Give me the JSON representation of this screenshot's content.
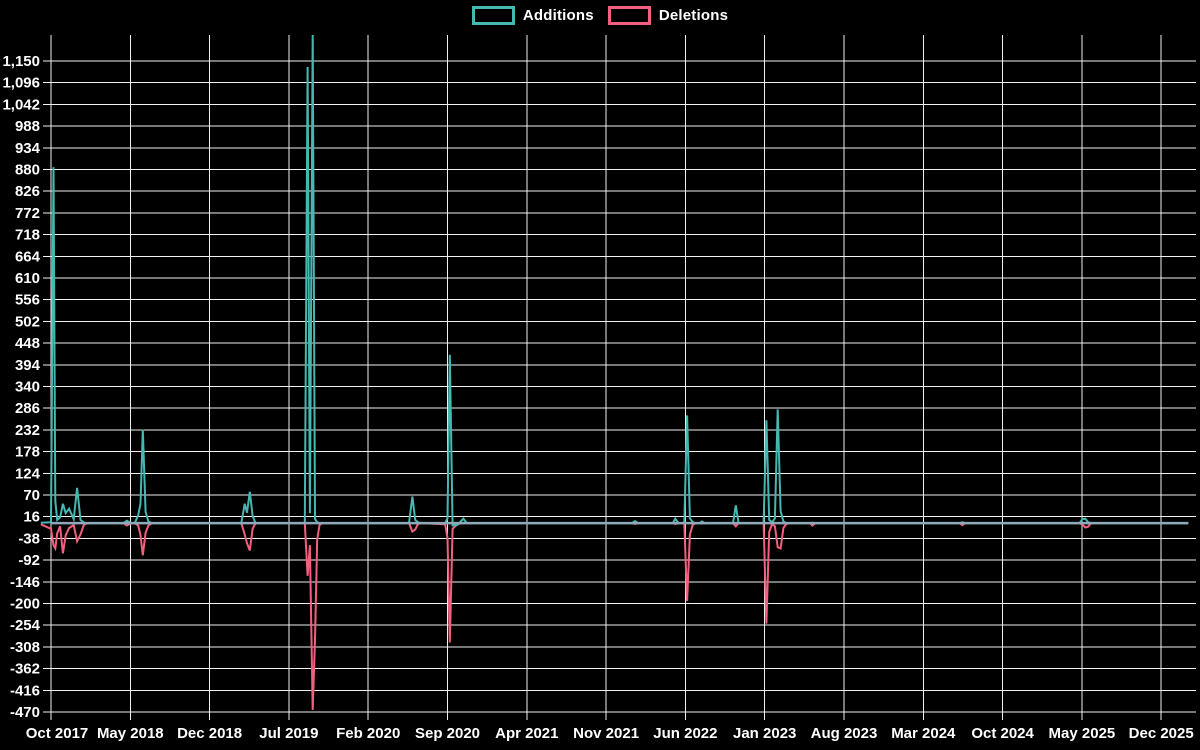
{
  "legend": {
    "items": [
      {
        "label": "Additions",
        "color": "#45b8b2"
      },
      {
        "label": "Deletions",
        "color": "#f2607f"
      }
    ]
  },
  "chart_data": {
    "type": "line",
    "title": "",
    "description": "Weekly code additions (teal) and deletions (pink) over time; both series sit at ~0 with sharp commit spikes",
    "background": "#000000",
    "grid_color": "#f0f0f0",
    "text_color": "#ffffff",
    "baseline_color": "#8fa9bb",
    "legend_position": "top-center",
    "x_tick_labels": [
      "Oct 2017",
      "May 2018",
      "Dec 2018",
      "Jul 2019",
      "Feb 2020",
      "Sep 2020",
      "Apr 2021",
      "Nov 2021",
      "Jun 2022",
      "Jan 2023",
      "Aug 2023",
      "Mar 2024",
      "Oct 2024",
      "May 2025",
      "Dec 2025"
    ],
    "x_months_per_gridline": 7,
    "y_tick_labels": [
      "1,150",
      "1,096",
      "1,042",
      "988",
      "934",
      "880",
      "826",
      "772",
      "718",
      "664",
      "610",
      "556",
      "502",
      "448",
      "394",
      "340",
      "286",
      "232",
      "178",
      "124",
      "70",
      "16",
      "-38",
      "-92",
      "-146",
      "-200",
      "-254",
      "-308",
      "-362",
      "-416",
      "-470"
    ],
    "y_max_tick": 1150,
    "y_min_tick": -470,
    "y_step": 54,
    "series": [
      {
        "name": "Additions",
        "color": "#45b8b2"
      },
      {
        "name": "Deletions",
        "color": "#f2607f"
      }
    ],
    "points_format": "[months_since_Oct_2017, additions, deletions]",
    "points": [
      [
        -0.9,
        1,
        -3
      ],
      [
        0.0,
        2,
        -14
      ],
      [
        0.22,
        886,
        -55
      ],
      [
        0.38,
        55,
        -63
      ],
      [
        0.55,
        8,
        -25
      ],
      [
        0.8,
        14,
        -8
      ],
      [
        1.05,
        48,
        -75
      ],
      [
        1.3,
        25,
        -30
      ],
      [
        1.6,
        36,
        -12
      ],
      [
        2.0,
        10,
        -5
      ],
      [
        2.3,
        88,
        -45
      ],
      [
        2.6,
        8,
        -28
      ],
      [
        2.9,
        1,
        -4
      ],
      [
        3.2,
        0,
        0
      ],
      [
        6.4,
        0,
        0
      ],
      [
        6.7,
        6,
        -6
      ],
      [
        7.0,
        1,
        -1
      ],
      [
        7.4,
        0,
        0
      ],
      [
        7.7,
        20,
        -6
      ],
      [
        7.9,
        48,
        -30
      ],
      [
        8.1,
        233,
        -80
      ],
      [
        8.35,
        28,
        -24
      ],
      [
        8.6,
        4,
        -6
      ],
      [
        8.9,
        0,
        0
      ],
      [
        16.8,
        0,
        0
      ],
      [
        17.1,
        48,
        -28
      ],
      [
        17.3,
        26,
        -50
      ],
      [
        17.55,
        78,
        -68
      ],
      [
        17.8,
        18,
        -14
      ],
      [
        18.05,
        0,
        0
      ],
      [
        22.4,
        0,
        0
      ],
      [
        22.65,
        1135,
        -131
      ],
      [
        22.85,
        25,
        -55
      ],
      [
        23.1,
        1215,
        -465
      ],
      [
        23.3,
        10,
        -290
      ],
      [
        23.5,
        2,
        -40
      ],
      [
        23.7,
        0,
        -5
      ],
      [
        23.9,
        0,
        0
      ],
      [
        31.6,
        0,
        0
      ],
      [
        31.9,
        66,
        -21
      ],
      [
        32.15,
        8,
        -16
      ],
      [
        32.4,
        2,
        -2
      ],
      [
        32.7,
        0,
        0
      ],
      [
        34.8,
        0,
        -3
      ],
      [
        35.0,
        12,
        -38
      ],
      [
        35.2,
        419,
        -297
      ],
      [
        35.45,
        -6,
        -14
      ],
      [
        35.9,
        -4,
        -2
      ],
      [
        36.4,
        11,
        0
      ],
      [
        36.7,
        0,
        0
      ],
      [
        51.3,
        0,
        0
      ],
      [
        51.55,
        5,
        -2
      ],
      [
        51.8,
        0,
        0
      ],
      [
        54.9,
        0,
        0
      ],
      [
        55.1,
        11,
        -2
      ],
      [
        55.4,
        0,
        0
      ],
      [
        55.9,
        0,
        0
      ],
      [
        56.15,
        268,
        -194
      ],
      [
        56.4,
        12,
        -28
      ],
      [
        56.65,
        2,
        -4
      ],
      [
        56.9,
        0,
        0
      ],
      [
        57.3,
        0,
        0
      ],
      [
        57.45,
        4,
        -1
      ],
      [
        57.7,
        0,
        0
      ],
      [
        60.2,
        0,
        0
      ],
      [
        60.45,
        44,
        -8
      ],
      [
        60.7,
        0,
        0
      ],
      [
        62.9,
        0,
        0
      ],
      [
        63.15,
        256,
        -250
      ],
      [
        63.4,
        8,
        -22
      ],
      [
        63.65,
        2,
        -2
      ],
      [
        63.9,
        12,
        -8
      ],
      [
        64.15,
        283,
        -60
      ],
      [
        64.4,
        30,
        -63
      ],
      [
        64.65,
        4,
        -12
      ],
      [
        64.9,
        0,
        -2
      ],
      [
        65.2,
        0,
        0
      ],
      [
        67.0,
        0,
        0
      ],
      [
        67.2,
        1,
        -6
      ],
      [
        67.5,
        0,
        0
      ],
      [
        80.2,
        0,
        0
      ],
      [
        80.45,
        2,
        -5
      ],
      [
        80.7,
        0,
        0
      ],
      [
        90.8,
        0,
        0
      ],
      [
        91.05,
        10,
        -4
      ],
      [
        91.3,
        11,
        -11
      ],
      [
        91.55,
        2,
        -9
      ],
      [
        91.8,
        0,
        0
      ],
      [
        100.4,
        0,
        0
      ]
    ]
  }
}
